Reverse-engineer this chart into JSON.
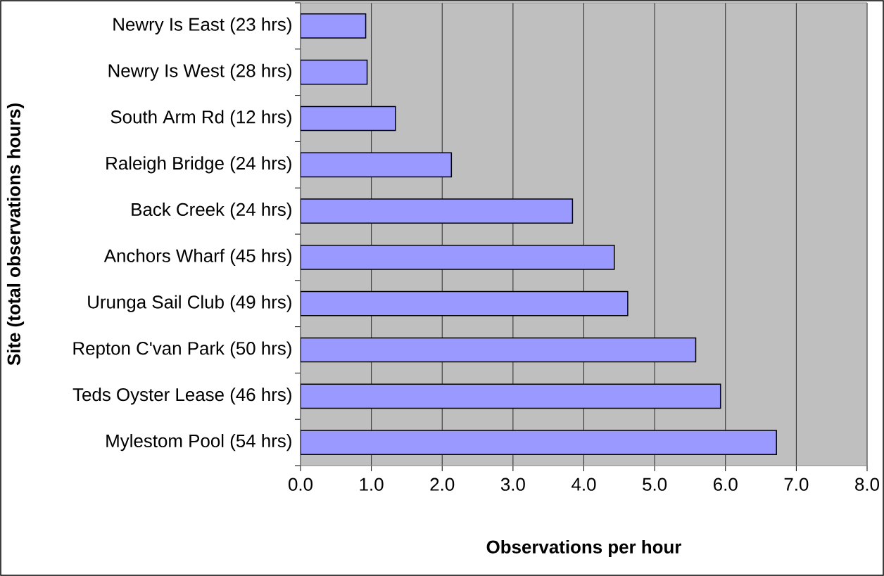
{
  "chart_data": {
    "type": "bar",
    "orientation": "horizontal",
    "xlabel": "Observations per hour",
    "ylabel": "Site (total observations hours)",
    "categories": [
      "Newry Is East (23 hrs)",
      "Newry Is West (28 hrs)",
      "South Arm Rd (12 hrs)",
      "Raleigh Bridge (24 hrs)",
      "Back Creek (24 hrs)",
      "Anchors Wharf (45 hrs)",
      "Urunga Sail Club (49 hrs)",
      "Repton C'van Park (50 hrs)",
      "Teds Oyster Lease (46 hrs)",
      "Mylestom Pool (54 hrs)"
    ],
    "values": [
      0.92,
      0.94,
      1.34,
      2.13,
      3.84,
      4.43,
      4.62,
      5.58,
      5.93,
      6.72
    ],
    "color": "#9999ff",
    "xlim": [
      0,
      8
    ],
    "xticks": [
      {
        "value": 0,
        "label": "0.0"
      },
      {
        "value": 1,
        "label": "1.0"
      },
      {
        "value": 2,
        "label": "2.0"
      },
      {
        "value": 3,
        "label": "3.0"
      },
      {
        "value": 4,
        "label": "4.0"
      },
      {
        "value": 5,
        "label": "5.0"
      },
      {
        "value": 6,
        "label": "6.0"
      },
      {
        "value": 7,
        "label": "7.0"
      },
      {
        "value": 8,
        "label": "8.0"
      }
    ],
    "grid": "x"
  }
}
